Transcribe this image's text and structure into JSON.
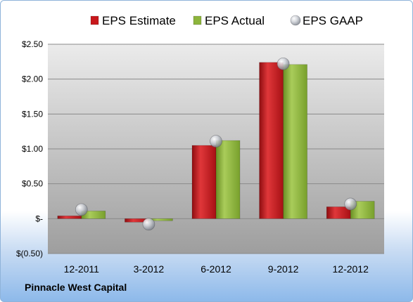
{
  "company": "Pinnacle West Capital",
  "colors": {
    "estimate": "#c8181c",
    "actual": "#8db53c",
    "gaap": "#b8bcc4",
    "plot_top": "#ebebeb",
    "plot_bottom": "#9e9e9e",
    "grid": "#8a8a8a"
  },
  "chart_data": {
    "type": "bar",
    "categories": [
      "12-2011",
      "3-2012",
      "6-2012",
      "9-2012",
      "12-2012"
    ],
    "series": [
      {
        "name": "EPS Estimate",
        "values": [
          0.04,
          -0.05,
          1.05,
          2.24,
          0.17
        ]
      },
      {
        "name": "EPS Actual",
        "values": [
          0.11,
          -0.03,
          1.12,
          2.21,
          0.25
        ]
      },
      {
        "name": "EPS GAAP",
        "values": [
          0.13,
          -0.08,
          1.11,
          2.22,
          0.21
        ],
        "marker": "sphere"
      }
    ],
    "ylim": [
      -0.5,
      2.5
    ],
    "yticks": [
      -0.5,
      0,
      0.5,
      1.0,
      1.5,
      2.0,
      2.5
    ],
    "ytick_labels": [
      "$(0.50)",
      "$-",
      "$0.50",
      "$1.00",
      "$1.50",
      "$2.00",
      "$2.50"
    ],
    "grid": true,
    "legend_position": "top"
  }
}
